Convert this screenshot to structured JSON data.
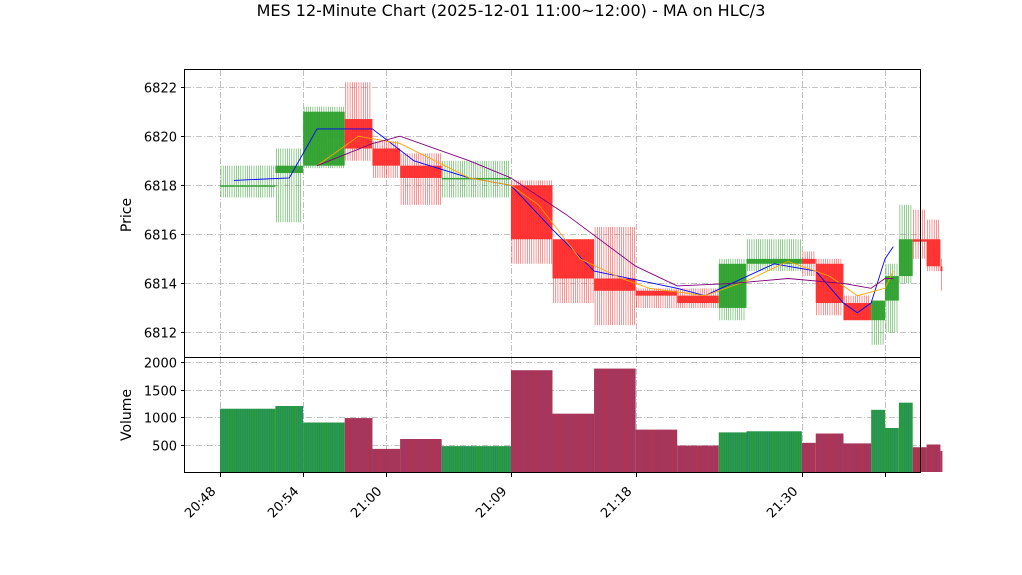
{
  "chart_data": {
    "type": "candlestick",
    "title": "MES 12-Minute Chart (2025-12-01 11:00~12:00) - MA on HLC/3",
    "price_panel": {
      "ylabel": "Price",
      "ylim": [
        6811.0,
        6822.7
      ],
      "yticks": [
        "6812",
        "6814",
        "6816",
        "6818",
        "6820",
        "6822"
      ],
      "grid": true
    },
    "volume_panel": {
      "ylabel": "Volume",
      "ylim": [
        0,
        2000
      ],
      "yticks": [
        "500",
        "1000",
        "1500",
        "2000"
      ],
      "grid": true
    },
    "x_tick_labels": [
      "20:48",
      "20:54",
      "21:00",
      "21:09",
      "21:18",
      "21:30",
      ""
    ],
    "x_tick_positions_minutes": [
      0,
      6,
      12,
      21,
      30,
      42,
      48
    ],
    "colors": {
      "up": "#2ca02c",
      "down": "#ff2b2b",
      "volume_edge_up": "#1f77b4",
      "volume_edge_down": "#7b3f8f",
      "ma1": "#0000ff",
      "ma2": "#ffa500",
      "ma3": "#800080",
      "grid": "#b0b0b0"
    },
    "candles": [
      {
        "t": "20:48",
        "o": 6818.0,
        "h": 6818.8,
        "l": 6817.5,
        "c": 6818.0,
        "v": 1150
      },
      {
        "t": "20:52",
        "o": 6818.5,
        "h": 6819.5,
        "l": 6816.5,
        "c": 6818.8,
        "v": 1200
      },
      {
        "t": "20:54",
        "o": 6818.8,
        "h": 6821.2,
        "l": 6818.7,
        "c": 6821.0,
        "v": 900
      },
      {
        "t": "20:57",
        "o": 6820.7,
        "h": 6822.2,
        "l": 6819.0,
        "c": 6819.5,
        "v": 980
      },
      {
        "t": "20:59",
        "o": 6819.5,
        "h": 6819.8,
        "l": 6818.3,
        "c": 6818.8,
        "v": 420
      },
      {
        "t": "21:01",
        "o": 6818.8,
        "h": 6819.3,
        "l": 6817.2,
        "c": 6818.3,
        "v": 600
      },
      {
        "t": "21:04",
        "o": 6818.3,
        "h": 6819.0,
        "l": 6817.5,
        "c": 6818.3,
        "v": 470
      },
      {
        "t": "21:09",
        "o": 6818.0,
        "h": 6818.2,
        "l": 6814.8,
        "c": 6815.8,
        "v": 1850
      },
      {
        "t": "21:12",
        "o": 6815.8,
        "h": 6815.8,
        "l": 6813.2,
        "c": 6814.2,
        "v": 1060
      },
      {
        "t": "21:15",
        "o": 6814.2,
        "h": 6816.3,
        "l": 6812.3,
        "c": 6813.7,
        "v": 1880
      },
      {
        "t": "21:18",
        "o": 6813.7,
        "h": 6813.8,
        "l": 6813.0,
        "c": 6813.5,
        "v": 770
      },
      {
        "t": "21:21",
        "o": 6813.5,
        "h": 6813.8,
        "l": 6813.0,
        "c": 6813.2,
        "v": 480
      },
      {
        "t": "21:24",
        "o": 6813.0,
        "h": 6815.0,
        "l": 6812.5,
        "c": 6814.8,
        "v": 720
      },
      {
        "t": "21:26",
        "o": 6814.8,
        "h": 6815.8,
        "l": 6814.5,
        "c": 6815.0,
        "v": 740
      },
      {
        "t": "21:30",
        "o": 6815.0,
        "h": 6815.3,
        "l": 6814.3,
        "c": 6814.8,
        "v": 530
      },
      {
        "t": "21:31",
        "o": 6814.8,
        "h": 6815.0,
        "l": 6812.7,
        "c": 6813.2,
        "v": 700
      },
      {
        "t": "21:33",
        "o": 6813.2,
        "h": 6813.5,
        "l": 6812.5,
        "c": 6812.5,
        "v": 520
      },
      {
        "t": "21:35",
        "o": 6812.5,
        "h": 6813.3,
        "l": 6811.5,
        "c": 6813.3,
        "v": 1130
      },
      {
        "t": "21:36",
        "o": 6813.3,
        "h": 6814.8,
        "l": 6812.0,
        "c": 6814.3,
        "v": 800
      },
      {
        "t": "21:37",
        "o": 6814.3,
        "h": 6817.2,
        "l": 6814.0,
        "c": 6815.8,
        "v": 1260
      },
      {
        "t": "21:38",
        "o": 6815.8,
        "h": 6817.0,
        "l": 6815.0,
        "c": 6815.7,
        "v": 450
      },
      {
        "t": "21:39",
        "o": 6815.8,
        "h": 6816.6,
        "l": 6814.5,
        "c": 6814.7,
        "v": 500
      },
      {
        "t": "21:40",
        "o": 6814.7,
        "h": 6815.0,
        "l": 6813.7,
        "c": 6814.5,
        "v": 380
      }
    ],
    "moving_averages": [
      {
        "name": "MA fast",
        "color": "#0000ff",
        "points": [
          [
            1,
            6818.2
          ],
          [
            5,
            6818.3
          ],
          [
            7,
            6820.3
          ],
          [
            11,
            6820.3
          ],
          [
            14,
            6819.0
          ],
          [
            18,
            6818.3
          ],
          [
            21,
            6818.0
          ],
          [
            24,
            6816.2
          ],
          [
            27,
            6814.5
          ],
          [
            33,
            6813.8
          ],
          [
            35,
            6813.5
          ],
          [
            40,
            6814.8
          ],
          [
            43,
            6814.5
          ],
          [
            45,
            6813.2
          ],
          [
            46,
            6812.8
          ],
          [
            47,
            6813.2
          ],
          [
            48,
            6815.0
          ],
          [
            48.6,
            6815.5
          ]
        ]
      },
      {
        "name": "MA mid",
        "color": "#ffa500",
        "points": [
          [
            7,
            6818.8
          ],
          [
            10,
            6820.0
          ],
          [
            13,
            6819.7
          ],
          [
            18,
            6818.3
          ],
          [
            21,
            6818.0
          ],
          [
            23,
            6817.2
          ],
          [
            26,
            6815.0
          ],
          [
            29,
            6814.2
          ],
          [
            31,
            6813.8
          ],
          [
            35,
            6813.5
          ],
          [
            38,
            6814.1
          ],
          [
            41,
            6814.9
          ],
          [
            44,
            6814.3
          ],
          [
            46,
            6813.5
          ],
          [
            48,
            6813.8
          ],
          [
            48.6,
            6814.5
          ]
        ]
      },
      {
        "name": "MA slow",
        "color": "#800080",
        "points": [
          [
            7,
            6818.8
          ],
          [
            11,
            6819.7
          ],
          [
            13,
            6820.0
          ],
          [
            18,
            6819.0
          ],
          [
            21,
            6818.3
          ],
          [
            25,
            6816.8
          ],
          [
            30,
            6814.7
          ],
          [
            33,
            6813.9
          ],
          [
            37,
            6814.0
          ],
          [
            41,
            6814.2
          ],
          [
            45,
            6814.0
          ],
          [
            47,
            6813.8
          ],
          [
            48,
            6814.2
          ],
          [
            48.6,
            6814.2
          ]
        ]
      }
    ]
  }
}
